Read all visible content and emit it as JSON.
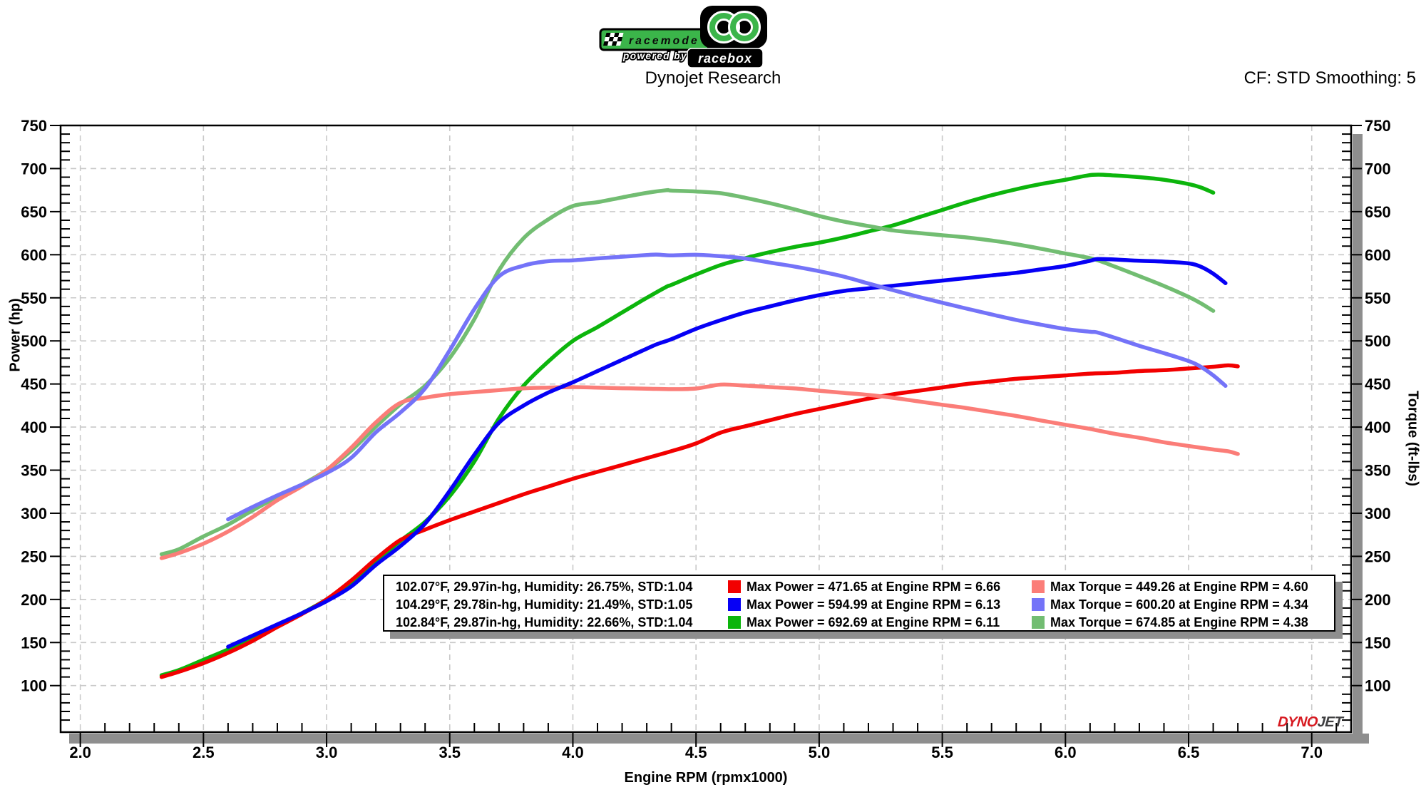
{
  "header": {
    "brand": {
      "racemode": "racemode",
      "powered_by": "powered by",
      "racebox": "racebox"
    },
    "title": "Dynojet Research",
    "cf": "CF: STD Smoothing: 5"
  },
  "watermark": {
    "dyno": "DYNO",
    "jet": "JET",
    "mark": "."
  },
  "legend": {
    "rows": [
      {
        "power_color": "#f20000",
        "torque_color": "#fb7d78",
        "env": "102.07°F, 29.97in-hg, Humidity: 26.75%, STD:1.04",
        "max_power": "Max Power = 471.65 at Engine RPM = 6.66",
        "max_torque": "Max Torque = 449.26 at Engine RPM = 4.60"
      },
      {
        "power_color": "#0600f5",
        "torque_color": "#7473f8",
        "env": "104.29°F, 29.78in-hg, Humidity: 21.49%, STD:1.05",
        "max_power": "Max Power = 594.99 at Engine RPM = 6.13",
        "max_torque": "Max Torque = 600.20 at Engine RPM = 4.34"
      },
      {
        "power_color": "#0cb50c",
        "torque_color": "#72bd72",
        "env": "102.84°F, 29.87in-hg, Humidity: 22.66%, STD:1.04",
        "max_power": "Max Power = 692.69 at Engine RPM = 6.11",
        "max_torque": "Max Torque = 674.85 at Engine RPM = 4.38"
      }
    ]
  },
  "chart_data": {
    "type": "line",
    "title": "Dynojet Research",
    "xlabel": "Engine RPM (rpmx1000)",
    "ylabel_left": "Power (hp)",
    "ylabel_right": "Torque (ft-lbs)",
    "xlim": [
      1.92,
      7.16
    ],
    "ylim": [
      46,
      750
    ],
    "x_major_ticks": [
      2.0,
      2.5,
      3.0,
      3.5,
      4.0,
      4.5,
      5.0,
      5.5,
      6.0,
      6.5,
      7.0
    ],
    "x_minor_step": 0.1,
    "y_major_ticks": [
      100,
      150,
      200,
      250,
      300,
      350,
      400,
      450,
      500,
      550,
      600,
      650,
      700,
      750
    ],
    "y_minor_step": 10,
    "grid": true,
    "grid_color": "#c9c9c9",
    "shadow_color": "#8e8e8e",
    "series": [
      {
        "name": "run3-power",
        "role": "power",
        "color": "#0cb50c",
        "points": [
          [
            2.33,
            112
          ],
          [
            2.4,
            118
          ],
          [
            2.5,
            130
          ],
          [
            2.6,
            142
          ],
          [
            2.7,
            156
          ],
          [
            2.8,
            170
          ],
          [
            2.9,
            184
          ],
          [
            3.0,
            200
          ],
          [
            3.1,
            220
          ],
          [
            3.2,
            244
          ],
          [
            3.3,
            268
          ],
          [
            3.4,
            290
          ],
          [
            3.5,
            320
          ],
          [
            3.6,
            360
          ],
          [
            3.7,
            410
          ],
          [
            3.8,
            448
          ],
          [
            3.9,
            476
          ],
          [
            4.0,
            500
          ],
          [
            4.1,
            516
          ],
          [
            4.2,
            533
          ],
          [
            4.3,
            550
          ],
          [
            4.38,
            562.8
          ],
          [
            4.4,
            565
          ],
          [
            4.5,
            577
          ],
          [
            4.6,
            588
          ],
          [
            4.7,
            596
          ],
          [
            4.8,
            603
          ],
          [
            4.9,
            609
          ],
          [
            5.0,
            614
          ],
          [
            5.1,
            620
          ],
          [
            5.2,
            627
          ],
          [
            5.3,
            634
          ],
          [
            5.4,
            643
          ],
          [
            5.5,
            652
          ],
          [
            5.6,
            661
          ],
          [
            5.7,
            669
          ],
          [
            5.8,
            676
          ],
          [
            5.9,
            682
          ],
          [
            6.0,
            687
          ],
          [
            6.11,
            692.69
          ],
          [
            6.2,
            692
          ],
          [
            6.3,
            690
          ],
          [
            6.4,
            687
          ],
          [
            6.5,
            682
          ],
          [
            6.55,
            678
          ],
          [
            6.6,
            672
          ]
        ]
      },
      {
        "name": "run3-torque",
        "role": "torque",
        "color": "#72bd72",
        "points": [
          [
            2.33,
            252.5
          ],
          [
            2.4,
            258.2
          ],
          [
            2.5,
            273.1
          ],
          [
            2.6,
            286.8
          ],
          [
            2.7,
            303.4
          ],
          [
            2.8,
            318.9
          ],
          [
            2.9,
            333.2
          ],
          [
            3.0,
            350.1
          ],
          [
            3.1,
            372.7
          ],
          [
            3.2,
            400.5
          ],
          [
            3.3,
            426.5
          ],
          [
            3.4,
            448.0
          ],
          [
            3.5,
            480.2
          ],
          [
            3.6,
            525.2
          ],
          [
            3.7,
            582.0
          ],
          [
            3.8,
            619.2
          ],
          [
            3.9,
            641.0
          ],
          [
            4.0,
            656.5
          ],
          [
            4.1,
            661.0
          ],
          [
            4.2,
            666.5
          ],
          [
            4.3,
            671.8
          ],
          [
            4.38,
            674.85
          ],
          [
            4.4,
            674.4
          ],
          [
            4.5,
            673.4
          ],
          [
            4.6,
            671.4
          ],
          [
            4.7,
            666.1
          ],
          [
            4.8,
            659.8
          ],
          [
            4.9,
            652.7
          ],
          [
            5.0,
            645.0
          ],
          [
            5.1,
            638.5
          ],
          [
            5.2,
            633.3
          ],
          [
            5.3,
            628.2
          ],
          [
            5.4,
            625.3
          ],
          [
            5.5,
            622.6
          ],
          [
            5.6,
            620.0
          ],
          [
            5.7,
            616.5
          ],
          [
            5.8,
            612.2
          ],
          [
            5.9,
            607.0
          ],
          [
            6.0,
            601.4
          ],
          [
            6.11,
            595.3
          ],
          [
            6.2,
            586.3
          ],
          [
            6.3,
            575.2
          ],
          [
            6.4,
            563.8
          ],
          [
            6.5,
            551.1
          ],
          [
            6.55,
            543.6
          ],
          [
            6.6,
            534.8
          ]
        ]
      },
      {
        "name": "run1-power",
        "role": "power",
        "color": "#f20000",
        "points": [
          [
            2.33,
            110
          ],
          [
            2.4,
            116
          ],
          [
            2.5,
            126
          ],
          [
            2.6,
            138
          ],
          [
            2.7,
            152
          ],
          [
            2.8,
            168
          ],
          [
            2.9,
            183
          ],
          [
            3.0,
            200
          ],
          [
            3.1,
            222
          ],
          [
            3.2,
            247
          ],
          [
            3.3,
            269
          ],
          [
            3.4,
            281
          ],
          [
            3.5,
            292
          ],
          [
            3.6,
            302
          ],
          [
            3.7,
            312
          ],
          [
            3.8,
            322
          ],
          [
            3.9,
            331
          ],
          [
            4.0,
            340
          ],
          [
            4.1,
            348
          ],
          [
            4.2,
            356
          ],
          [
            4.3,
            364
          ],
          [
            4.4,
            372
          ],
          [
            4.5,
            381
          ],
          [
            4.6,
            393.5
          ],
          [
            4.7,
            401
          ],
          [
            4.8,
            408
          ],
          [
            4.9,
            415
          ],
          [
            5.0,
            421
          ],
          [
            5.1,
            427
          ],
          [
            5.2,
            433
          ],
          [
            5.3,
            438
          ],
          [
            5.4,
            442
          ],
          [
            5.5,
            446
          ],
          [
            5.6,
            450
          ],
          [
            5.7,
            453
          ],
          [
            5.8,
            456
          ],
          [
            5.9,
            458
          ],
          [
            6.0,
            460
          ],
          [
            6.1,
            462
          ],
          [
            6.2,
            463
          ],
          [
            6.3,
            465
          ],
          [
            6.4,
            466
          ],
          [
            6.5,
            468
          ],
          [
            6.6,
            470
          ],
          [
            6.66,
            471.65
          ],
          [
            6.7,
            470.5
          ]
        ]
      },
      {
        "name": "run1-torque",
        "role": "torque",
        "color": "#fb7d78",
        "points": [
          [
            2.33,
            247.9
          ],
          [
            2.4,
            253.8
          ],
          [
            2.5,
            264.7
          ],
          [
            2.6,
            278.8
          ],
          [
            2.7,
            295.7
          ],
          [
            2.8,
            315.1
          ],
          [
            2.9,
            331.4
          ],
          [
            3.0,
            350.1
          ],
          [
            3.1,
            376.1
          ],
          [
            3.2,
            405.4
          ],
          [
            3.3,
            428.1
          ],
          [
            3.4,
            434.1
          ],
          [
            3.5,
            438.2
          ],
          [
            3.6,
            440.6
          ],
          [
            3.7,
            442.9
          ],
          [
            3.8,
            445.0
          ],
          [
            3.9,
            445.8
          ],
          [
            4.0,
            446.4
          ],
          [
            4.1,
            445.8
          ],
          [
            4.2,
            445.1
          ],
          [
            4.3,
            444.6
          ],
          [
            4.4,
            444.0
          ],
          [
            4.5,
            444.7
          ],
          [
            4.6,
            449.26
          ],
          [
            4.7,
            448.1
          ],
          [
            4.8,
            446.4
          ],
          [
            4.9,
            444.8
          ],
          [
            5.0,
            442.2
          ],
          [
            5.1,
            439.7
          ],
          [
            5.2,
            437.3
          ],
          [
            5.3,
            434.0
          ],
          [
            5.4,
            429.9
          ],
          [
            5.5,
            425.9
          ],
          [
            5.6,
            422.0
          ],
          [
            5.7,
            417.4
          ],
          [
            5.8,
            412.9
          ],
          [
            5.9,
            407.7
          ],
          [
            6.0,
            402.7
          ],
          [
            6.1,
            397.8
          ],
          [
            6.2,
            392.2
          ],
          [
            6.3,
            387.6
          ],
          [
            6.4,
            382.4
          ],
          [
            6.5,
            378.1
          ],
          [
            6.6,
            374.0
          ],
          [
            6.66,
            371.9
          ],
          [
            6.7,
            368.8
          ]
        ]
      },
      {
        "name": "run2-power",
        "role": "power",
        "color": "#0600f5",
        "points": [
          [
            2.6,
            145
          ],
          [
            2.7,
            158
          ],
          [
            2.8,
            171
          ],
          [
            2.9,
            184
          ],
          [
            3.0,
            198
          ],
          [
            3.1,
            215
          ],
          [
            3.2,
            240
          ],
          [
            3.3,
            262
          ],
          [
            3.4,
            288
          ],
          [
            3.5,
            326
          ],
          [
            3.6,
            368
          ],
          [
            3.7,
            405
          ],
          [
            3.8,
            425
          ],
          [
            3.9,
            440
          ],
          [
            4.0,
            452
          ],
          [
            4.1,
            465
          ],
          [
            4.2,
            478
          ],
          [
            4.3,
            491
          ],
          [
            4.34,
            496
          ],
          [
            4.4,
            502
          ],
          [
            4.5,
            514
          ],
          [
            4.6,
            524
          ],
          [
            4.7,
            533
          ],
          [
            4.8,
            540
          ],
          [
            4.9,
            547
          ],
          [
            5.0,
            553
          ],
          [
            5.1,
            558
          ],
          [
            5.2,
            561
          ],
          [
            5.3,
            564
          ],
          [
            5.4,
            567
          ],
          [
            5.5,
            570
          ],
          [
            5.6,
            573
          ],
          [
            5.7,
            576
          ],
          [
            5.8,
            579
          ],
          [
            5.9,
            583
          ],
          [
            6.0,
            587
          ],
          [
            6.1,
            593
          ],
          [
            6.13,
            594.99
          ],
          [
            6.2,
            594.5
          ],
          [
            6.3,
            593
          ],
          [
            6.4,
            592
          ],
          [
            6.5,
            590
          ],
          [
            6.55,
            586
          ],
          [
            6.6,
            578
          ],
          [
            6.65,
            567
          ]
        ]
      },
      {
        "name": "run2-torque",
        "role": "torque",
        "color": "#7473f8",
        "points": [
          [
            2.6,
            292.9
          ],
          [
            2.7,
            307.3
          ],
          [
            2.8,
            320.7
          ],
          [
            2.9,
            333.2
          ],
          [
            3.0,
            346.6
          ],
          [
            3.1,
            364.3
          ],
          [
            3.2,
            393.9
          ],
          [
            3.3,
            417.0
          ],
          [
            3.4,
            444.9
          ],
          [
            3.5,
            489.2
          ],
          [
            3.6,
            536.9
          ],
          [
            3.7,
            574.9
          ],
          [
            3.8,
            587.4
          ],
          [
            3.9,
            592.5
          ],
          [
            4.0,
            593.5
          ],
          [
            4.1,
            595.7
          ],
          [
            4.2,
            597.7
          ],
          [
            4.3,
            599.7
          ],
          [
            4.34,
            600.2
          ],
          [
            4.4,
            599.2
          ],
          [
            4.5,
            599.9
          ],
          [
            4.6,
            598.3
          ],
          [
            4.7,
            595.6
          ],
          [
            4.8,
            590.9
          ],
          [
            4.9,
            586.3
          ],
          [
            5.0,
            580.9
          ],
          [
            5.1,
            574.6
          ],
          [
            5.2,
            566.6
          ],
          [
            5.3,
            558.9
          ],
          [
            5.4,
            551.4
          ],
          [
            5.5,
            544.3
          ],
          [
            5.6,
            537.4
          ],
          [
            5.7,
            530.7
          ],
          [
            5.8,
            524.3
          ],
          [
            5.9,
            518.9
          ],
          [
            6.0,
            513.8
          ],
          [
            6.1,
            510.6
          ],
          [
            6.13,
            509.8
          ],
          [
            6.2,
            503.6
          ],
          [
            6.3,
            494.3
          ],
          [
            6.4,
            485.8
          ],
          [
            6.5,
            476.7
          ],
          [
            6.55,
            469.9
          ],
          [
            6.6,
            460.0
          ],
          [
            6.65,
            447.8
          ]
        ]
      }
    ]
  }
}
